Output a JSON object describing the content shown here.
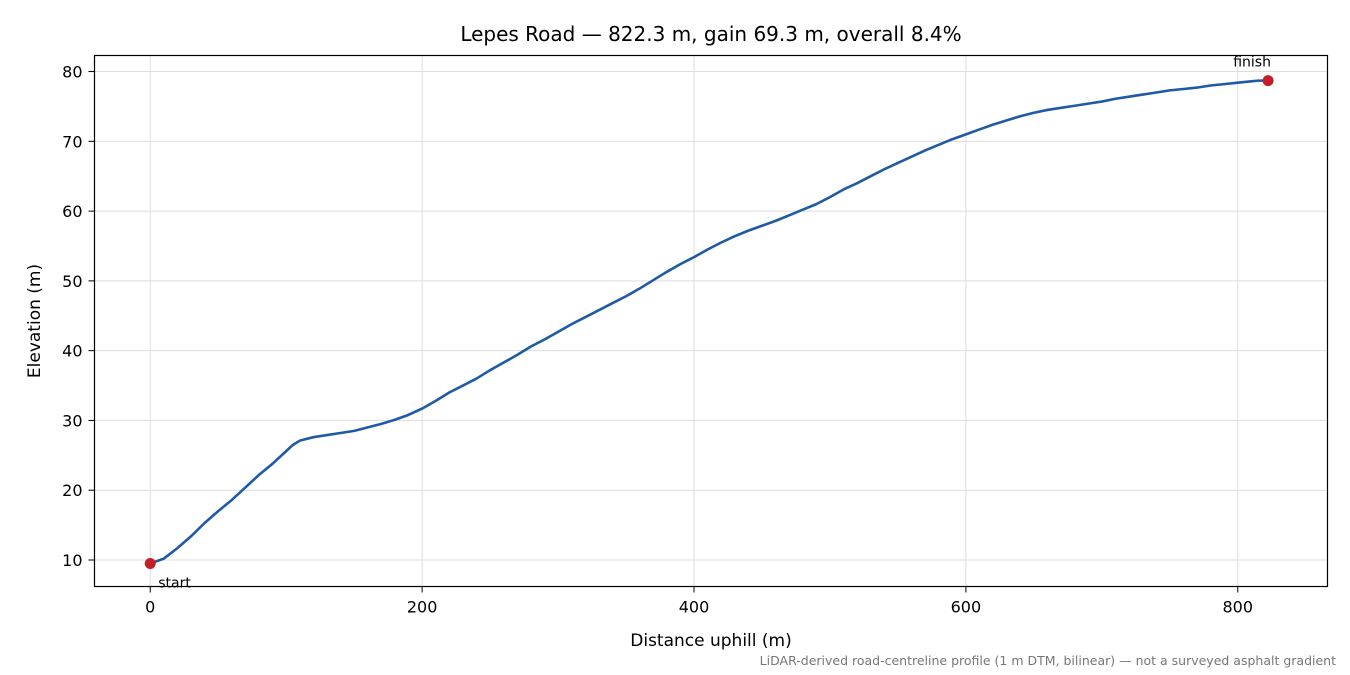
{
  "chart_data": {
    "type": "line",
    "title": "Lepes Road — 822.3 m, gain 69.3 m, overall 8.4%",
    "xlabel": "Distance uphill (m)",
    "ylabel": "Elevation (m)",
    "xlim": [
      -41,
      866
    ],
    "ylim": [
      6.2,
      82.3
    ],
    "xticks": [
      0,
      200,
      400,
      600,
      800
    ],
    "yticks": [
      10,
      20,
      30,
      40,
      50,
      60,
      70,
      80
    ],
    "grid": true,
    "legend": "none",
    "series": [
      {
        "color": "#1f5aa6",
        "x": [
          0,
          10,
          20,
          30,
          40,
          50,
          60,
          70,
          80,
          90,
          100,
          105,
          110,
          120,
          130,
          140,
          150,
          160,
          170,
          180,
          190,
          200,
          210,
          220,
          230,
          240,
          250,
          260,
          270,
          280,
          290,
          300,
          310,
          320,
          330,
          340,
          350,
          360,
          370,
          380,
          390,
          400,
          410,
          420,
          430,
          440,
          450,
          460,
          470,
          480,
          490,
          500,
          510,
          520,
          530,
          540,
          550,
          560,
          570,
          580,
          590,
          600,
          610,
          620,
          630,
          640,
          650,
          660,
          670,
          680,
          690,
          700,
          710,
          720,
          730,
          740,
          750,
          760,
          770,
          780,
          790,
          800,
          810,
          815,
          822.3
        ],
        "y": [
          9.5,
          10.2,
          11.7,
          13.4,
          15.3,
          17.0,
          18.6,
          20.4,
          22.2,
          23.8,
          25.6,
          26.5,
          27.1,
          27.6,
          27.9,
          28.2,
          28.5,
          29.0,
          29.5,
          30.1,
          30.8,
          31.7,
          32.8,
          34.0,
          35.0,
          36.0,
          37.2,
          38.3,
          39.4,
          40.6,
          41.6,
          42.7,
          43.8,
          44.8,
          45.8,
          46.8,
          47.8,
          48.9,
          50.1,
          51.3,
          52.4,
          53.4,
          54.5,
          55.5,
          56.4,
          57.2,
          57.9,
          58.6,
          59.4,
          60.2,
          61.0,
          62.0,
          63.1,
          64.0,
          65.0,
          66.0,
          66.9,
          67.8,
          68.7,
          69.5,
          70.3,
          71.0,
          71.7,
          72.4,
          73.0,
          73.6,
          74.1,
          74.5,
          74.8,
          75.1,
          75.4,
          75.7,
          76.1,
          76.4,
          76.7,
          77.0,
          77.3,
          77.5,
          77.7,
          78.0,
          78.2,
          78.4,
          78.6,
          78.7,
          78.7
        ]
      }
    ],
    "markers": [
      {
        "label": "start",
        "x": 0,
        "y": 9.5,
        "color": "#c41f27"
      },
      {
        "label": "finish",
        "x": 822.3,
        "y": 78.7,
        "color": "#c41f27"
      }
    ],
    "footnote": "LiDAR-derived road-centreline profile (1 m DTM, bilinear) — not a surveyed asphalt gradient"
  }
}
